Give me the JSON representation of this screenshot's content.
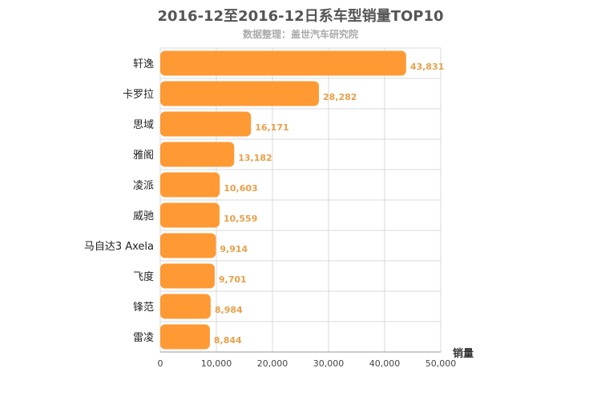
{
  "chart_data": {
    "type": "bar",
    "orientation": "horizontal",
    "title": "2016-12至2016-12日系车型销量TOP10",
    "subtitle": "数据整理：盖世汽车研究院",
    "categories": [
      "轩逸",
      "卡罗拉",
      "思域",
      "雅阁",
      "凌派",
      "威驰",
      "马自达3 Axela",
      "飞度",
      "锋范",
      "雷凌"
    ],
    "values": [
      43831,
      28282,
      16171,
      13182,
      10603,
      10559,
      9914,
      9701,
      8984,
      8844
    ],
    "value_labels": [
      "43,831",
      "28,282",
      "16,171",
      "13,182",
      "10,603",
      "10,559",
      "9,914",
      "9,701",
      "8,984",
      "8,844"
    ],
    "xlabel": "销量",
    "ylabel": "",
    "xlim": [
      0,
      50000
    ],
    "ticks": [
      0,
      10000,
      20000,
      30000,
      40000,
      50000
    ],
    "tick_labels": [
      "0",
      "10,000",
      "20,000",
      "30,000",
      "40,000",
      "50,000"
    ],
    "grid": true,
    "legend": "none",
    "bar_color": "#ff9933",
    "label_color": "#e8a04a"
  }
}
